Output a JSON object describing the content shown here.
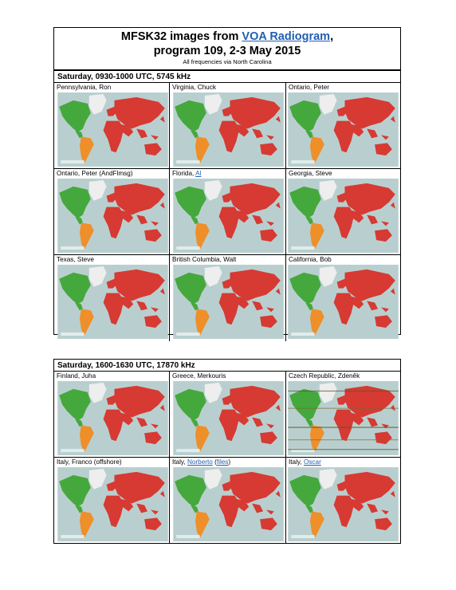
{
  "title": {
    "line1_prefix": "MFSK32 images from ",
    "line1_link": "VOA Radiogram",
    "line1_suffix": ",",
    "line2": "program 109, 2-3 May 2015",
    "note": "All frequencies via North Carolina"
  },
  "sections": [
    {
      "header": "Saturday, 0930-1000 UTC, 5745 kHz",
      "cells": [
        {
          "label": "Pennsylvania, Ron"
        },
        {
          "label": "Virginia, Chuck"
        },
        {
          "label": "Ontario, Peter"
        },
        {
          "label": "Ontario, Peter (AndFlmsg)"
        },
        {
          "label_prefix": "Florida, ",
          "label_link": "Al"
        },
        {
          "label": "Georgia, Steve"
        },
        {
          "label": "Texas, Steve"
        },
        {
          "label": "British Columbia, Walt"
        },
        {
          "label": "California, Bob"
        }
      ]
    },
    {
      "header": "Saturday, 1600-1630 UTC, 17870 kHz",
      "cells": [
        {
          "label": "Finland, Juha"
        },
        {
          "label": "Greece, Merkouris"
        },
        {
          "label": "Czech Republic, Zdeněk"
        },
        {
          "label": "Italy, Franco (offshore)"
        },
        {
          "label_prefix": "Italy, ",
          "label_link": "Norberto",
          "label_middle": " (",
          "label_link2": "files",
          "label_suffix": ")"
        },
        {
          "label_prefix": "Italy, ",
          "label_link": "Oscar"
        }
      ]
    }
  ],
  "colors": {
    "ocean": "#b9cfcf",
    "green": "#45a83c",
    "red": "#d63a33",
    "orange": "#ee8f2a",
    "ice": "#eeeeee",
    "link": "#1f5fb0"
  }
}
